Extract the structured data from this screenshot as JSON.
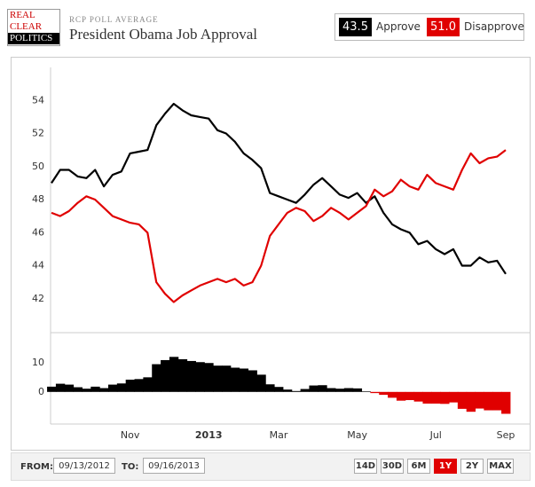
{
  "header": {
    "logo": [
      "REAL",
      "CLEAR",
      "POLITICS"
    ],
    "kicker": "RCP POLL AVERAGE",
    "title": "President Obama Job Approval"
  },
  "chart_data": [
    {
      "type": "line",
      "categories": [
        null,
        null,
        null,
        null,
        null,
        null,
        null,
        null,
        null,
        "Nov",
        null,
        null,
        null,
        null,
        null,
        null,
        null,
        null,
        "2013",
        null,
        null,
        null,
        null,
        null,
        null,
        null,
        "Mar",
        null,
        null,
        null,
        null,
        null,
        null,
        null,
        null,
        "May",
        null,
        null,
        null,
        null,
        null,
        null,
        null,
        null,
        "Jul",
        null,
        null,
        null,
        null,
        null,
        null,
        null,
        "Sep"
      ],
      "series": [
        {
          "name": "Approve",
          "color": "#000000",
          "current_label": "43.5",
          "values": [
            49.0,
            49.8,
            49.8,
            49.4,
            49.3,
            49.8,
            48.8,
            49.5,
            49.7,
            50.8,
            50.9,
            51.0,
            52.5,
            53.2,
            53.8,
            53.4,
            53.1,
            53.0,
            52.9,
            52.2,
            52.0,
            51.5,
            50.8,
            50.4,
            49.9,
            48.4,
            48.2,
            48.0,
            47.8,
            48.3,
            48.9,
            49.3,
            48.8,
            48.3,
            48.1,
            48.4,
            47.8,
            48.2,
            47.2,
            46.5,
            46.2,
            46.0,
            45.3,
            45.5,
            45.0,
            44.7,
            45.0,
            44.0,
            44.0,
            44.5,
            44.2,
            44.3,
            43.5
          ]
        },
        {
          "name": "Disapprove",
          "color": "#e00000",
          "current_label": "51.0",
          "values": [
            47.2,
            47.0,
            47.3,
            47.8,
            48.2,
            48.0,
            47.5,
            47.0,
            46.8,
            46.6,
            46.5,
            46.0,
            43.0,
            42.3,
            41.8,
            42.2,
            42.5,
            42.8,
            43.0,
            43.2,
            43.0,
            43.2,
            42.8,
            43.0,
            44.0,
            45.8,
            46.5,
            47.2,
            47.5,
            47.3,
            46.7,
            47.0,
            47.5,
            47.2,
            46.8,
            47.2,
            47.6,
            48.6,
            48.2,
            48.5,
            49.2,
            48.8,
            48.6,
            49.5,
            49.0,
            48.8,
            48.6,
            49.8,
            50.8,
            50.2,
            50.5,
            50.6,
            51.0
          ]
        }
      ],
      "ylim": [
        40,
        56
      ],
      "yticks": [
        42,
        44,
        46,
        48,
        50,
        52,
        54
      ],
      "grid": false
    },
    {
      "type": "bar",
      "color": "#000000",
      "negative_color": "#e00000",
      "values": [
        1.8,
        2.8,
        2.5,
        1.6,
        1.1,
        1.8,
        1.3,
        2.5,
        2.9,
        4.2,
        4.4,
        5.0,
        9.5,
        10.9,
        12.0,
        11.2,
        10.6,
        10.2,
        9.9,
        9.0,
        9.0,
        8.3,
        8.0,
        7.4,
        5.9,
        2.6,
        1.7,
        0.8,
        0.3,
        1.0,
        2.2,
        2.3,
        1.3,
        1.1,
        1.3,
        1.2,
        0.2,
        -0.4,
        -1.0,
        -2.0,
        -3.0,
        -2.8,
        -3.3,
        -4.0,
        -4.0,
        -4.1,
        -3.6,
        -5.8,
        -6.8,
        -5.7,
        -6.3,
        -6.3,
        -7.5
      ],
      "ylim": [
        -11,
        20
      ],
      "yticks": [
        0,
        10
      ],
      "grid": false
    }
  ],
  "controls": {
    "from_label": "FROM:",
    "from": "09/13/2012",
    "to_label": "TO:",
    "to": "09/16/2013",
    "ranges": [
      "14D",
      "30D",
      "6M",
      "1Y",
      "2Y",
      "MAX"
    ],
    "active_range": "1Y"
  }
}
